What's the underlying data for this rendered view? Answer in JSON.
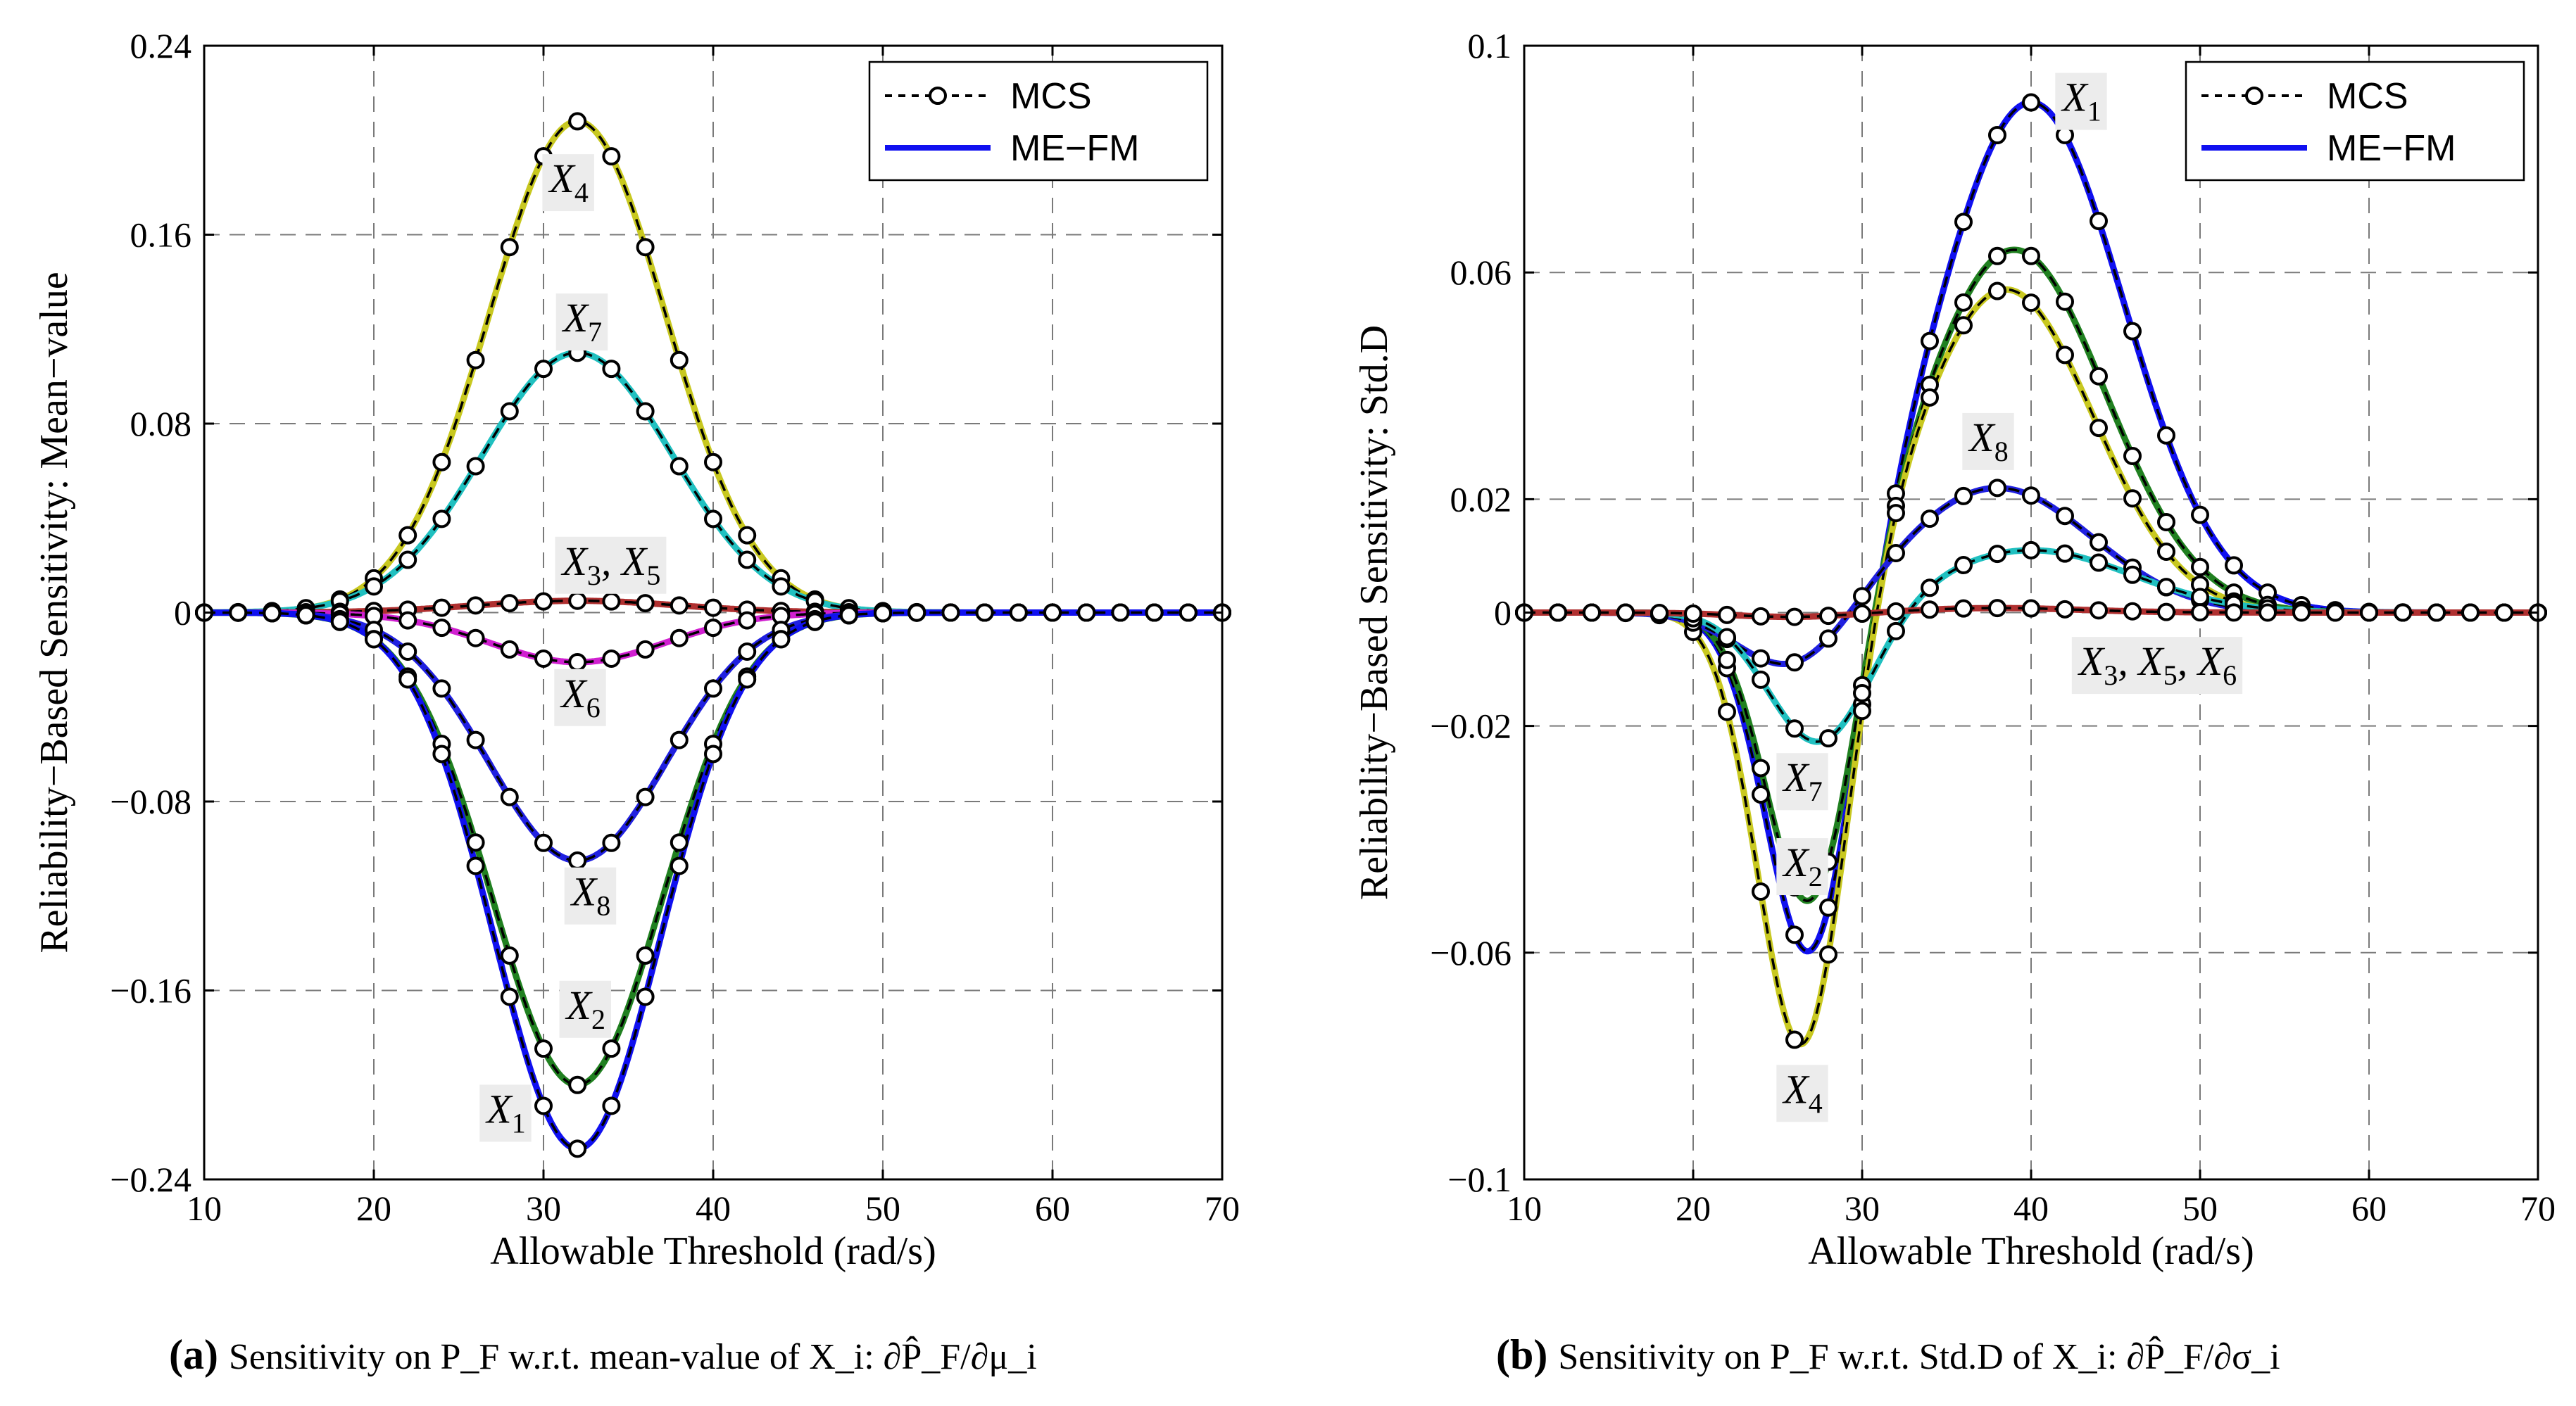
{
  "chart_data": [
    {
      "type": "line",
      "id": "a",
      "xlabel": "Allowable Threshold (rad/s)",
      "ylabel": "Reliability−Based Sensitivity: Mean−value",
      "xlim": [
        10,
        70
      ],
      "ylim": [
        -0.24,
        0.24
      ],
      "xticks": [
        10,
        20,
        30,
        40,
        50,
        60,
        70
      ],
      "xtick_labels": [
        "10",
        "20",
        "30",
        "40",
        "50",
        "60",
        "70"
      ],
      "yticks": [
        -0.24,
        -0.16,
        -0.08,
        0,
        0.08,
        0.16,
        0.24
      ],
      "ytick_labels": [
        "−0.24",
        "−0.16",
        "−0.08",
        "0",
        "0.08",
        "0.16",
        "0.24"
      ],
      "grid": true,
      "legend": {
        "position": "top-right",
        "entries": [
          "MCS",
          "ME−FM"
        ]
      },
      "caption_letter": "(a)",
      "caption": "Sensitivity on P_F w.r.t. mean-value of X_i: ∂P̂_F/∂μ_i",
      "series": [
        {
          "name": "X4",
          "color": "#c8c820",
          "peak": 0.208,
          "center": 32,
          "width": 5.2
        },
        {
          "name": "X7",
          "color": "#20c0c0",
          "peak": 0.11,
          "center": 32,
          "width": 5.6
        },
        {
          "name": "X3, X5",
          "color": "#b03030",
          "peak": 0.005,
          "center": 32,
          "width": 6
        },
        {
          "name": "X6",
          "color": "#d020d0",
          "peak": -0.021,
          "center": 32,
          "width": 5.2
        },
        {
          "name": "X8",
          "color": "#2020e0",
          "peak": -0.105,
          "center": 32,
          "width": 5.2
        },
        {
          "name": "X2",
          "color": "#208020",
          "peak": -0.2,
          "center": 32,
          "width": 5.0
        },
        {
          "name": "X1",
          "color": "#1010f0",
          "peak": -0.227,
          "center": 32,
          "width": 4.9
        }
      ],
      "annotations": [
        {
          "text": "X4",
          "x": 31.5,
          "y": 0.178
        },
        {
          "text": "X7",
          "x": 32.3,
          "y": 0.119
        },
        {
          "text": "X3, X5",
          "x": 34,
          "y": 0.016
        },
        {
          "text": "X6",
          "x": 32.2,
          "y": -0.04
        },
        {
          "text": "X8",
          "x": 32.8,
          "y": -0.124
        },
        {
          "text": "X2",
          "x": 32.5,
          "y": -0.172
        },
        {
          "text": "X1",
          "x": 27.8,
          "y": -0.216
        }
      ]
    },
    {
      "type": "line",
      "id": "b",
      "xlabel": "Allowable Threshold (rad/s)",
      "ylabel": "Reliability−Based Sensitivity: Std.D",
      "xlim": [
        10,
        70
      ],
      "ylim": [
        -0.1,
        0.1
      ],
      "xticks": [
        10,
        20,
        30,
        40,
        50,
        60,
        70
      ],
      "xtick_labels": [
        "10",
        "20",
        "30",
        "40",
        "50",
        "60",
        "70"
      ],
      "yticks": [
        -0.1,
        -0.06,
        -0.02,
        0,
        0.02,
        0.06,
        0.1
      ],
      "ytick_labels": [
        "−0.1",
        "−0.06",
        "−0.02",
        "0",
        "0.02",
        "0.06",
        "0.1"
      ],
      "grid": true,
      "legend": {
        "position": "top-right",
        "entries": [
          "MCS",
          "ME−FM"
        ]
      },
      "caption_letter": "(b)",
      "caption": "Sensitivity on P_F w.r.t. Std.D of X_i: ∂P̂_F/∂σ_i",
      "series": [
        {
          "name": "X1",
          "color": "#1010f0",
          "neg": -0.065,
          "negCenter": 27,
          "negWidth": 2.6,
          "pos": 0.09,
          "posCenter": 40,
          "posWidth": 5.5
        },
        {
          "name": "X2",
          "color": "#208020",
          "neg": -0.056,
          "negCenter": 27,
          "negWidth": 2.6,
          "pos": 0.064,
          "posCenter": 39,
          "posWidth": 5.4
        },
        {
          "name": "X4",
          "color": "#c8c820",
          "neg": -0.08,
          "negCenter": 26.5,
          "negWidth": 2.6,
          "pos": 0.057,
          "posCenter": 38.5,
          "posWidth": 5.2
        },
        {
          "name": "X8",
          "color": "#2020e0",
          "neg": -0.011,
          "negCenter": 26,
          "negWidth": 3.2,
          "pos": 0.022,
          "posCenter": 38,
          "posWidth": 5.6
        },
        {
          "name": "X7",
          "color": "#20c0c0",
          "neg": -0.024,
          "negCenter": 27.5,
          "negWidth": 3.0,
          "pos": 0.011,
          "posCenter": 40,
          "posWidth": 6.0
        },
        {
          "name": "X3, X5, X6",
          "color": "#b03030",
          "neg": -0.0008,
          "negCenter": 26,
          "negWidth": 3.5,
          "pos": 0.0008,
          "posCenter": 38,
          "posWidth": 5.0
        }
      ],
      "annotations": [
        {
          "text": "X1",
          "x": 43,
          "y": 0.0885
        },
        {
          "text": "X8",
          "x": 37.5,
          "y": 0.0285
        },
        {
          "text": "X3, X5, X6",
          "x": 47.5,
          "y": -0.011
        },
        {
          "text": "X7",
          "x": 26.5,
          "y": -0.0315
        },
        {
          "text": "X2",
          "x": 26.5,
          "y": -0.0465
        },
        {
          "text": "X4",
          "x": 26.5,
          "y": -0.0865
        }
      ]
    }
  ]
}
